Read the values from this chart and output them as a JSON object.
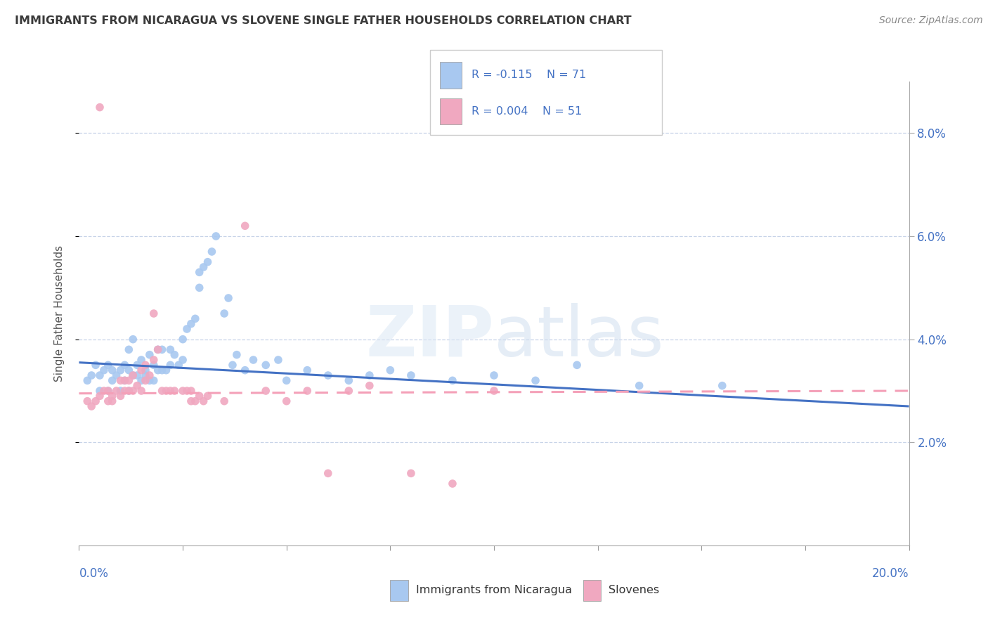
{
  "title": "IMMIGRANTS FROM NICARAGUA VS SLOVENE SINGLE FATHER HOUSEHOLDS CORRELATION CHART",
  "source": "Source: ZipAtlas.com",
  "ylabel": "Single Father Households",
  "legend_blue_label": "Immigrants from Nicaragua",
  "legend_pink_label": "Slovenes",
  "legend_blue_r": "R = -0.115",
  "legend_blue_n": "N = 71",
  "legend_pink_r": "R = 0.004",
  "legend_pink_n": "N = 51",
  "blue_color": "#a8c8f0",
  "pink_color": "#f0a8c0",
  "blue_line_color": "#4472c4",
  "pink_line_color": "#f4a0b8",
  "title_color": "#3a3a3a",
  "axis_label_color": "#4472c4",
  "background_color": "#ffffff",
  "grid_color": "#c8d4e8",
  "blue_scatter": [
    [
      0.002,
      0.032
    ],
    [
      0.003,
      0.033
    ],
    [
      0.004,
      0.035
    ],
    [
      0.005,
      0.03
    ],
    [
      0.005,
      0.033
    ],
    [
      0.006,
      0.034
    ],
    [
      0.007,
      0.03
    ],
    [
      0.007,
      0.035
    ],
    [
      0.008,
      0.034
    ],
    [
      0.008,
      0.032
    ],
    [
      0.009,
      0.033
    ],
    [
      0.01,
      0.03
    ],
    [
      0.01,
      0.034
    ],
    [
      0.011,
      0.032
    ],
    [
      0.011,
      0.035
    ],
    [
      0.012,
      0.03
    ],
    [
      0.012,
      0.034
    ],
    [
      0.012,
      0.038
    ],
    [
      0.013,
      0.033
    ],
    [
      0.013,
      0.04
    ],
    [
      0.014,
      0.033
    ],
    [
      0.014,
      0.035
    ],
    [
      0.015,
      0.032
    ],
    [
      0.015,
      0.036
    ],
    [
      0.016,
      0.033
    ],
    [
      0.016,
      0.034
    ],
    [
      0.017,
      0.032
    ],
    [
      0.017,
      0.037
    ],
    [
      0.018,
      0.032
    ],
    [
      0.018,
      0.035
    ],
    [
      0.019,
      0.034
    ],
    [
      0.019,
      0.038
    ],
    [
      0.02,
      0.034
    ],
    [
      0.02,
      0.038
    ],
    [
      0.021,
      0.034
    ],
    [
      0.022,
      0.035
    ],
    [
      0.022,
      0.038
    ],
    [
      0.023,
      0.037
    ],
    [
      0.024,
      0.035
    ],
    [
      0.025,
      0.036
    ],
    [
      0.025,
      0.04
    ],
    [
      0.026,
      0.042
    ],
    [
      0.027,
      0.043
    ],
    [
      0.028,
      0.044
    ],
    [
      0.029,
      0.05
    ],
    [
      0.029,
      0.053
    ],
    [
      0.03,
      0.054
    ],
    [
      0.031,
      0.055
    ],
    [
      0.032,
      0.057
    ],
    [
      0.033,
      0.06
    ],
    [
      0.035,
      0.045
    ],
    [
      0.036,
      0.048
    ],
    [
      0.037,
      0.035
    ],
    [
      0.038,
      0.037
    ],
    [
      0.04,
      0.034
    ],
    [
      0.042,
      0.036
    ],
    [
      0.045,
      0.035
    ],
    [
      0.048,
      0.036
    ],
    [
      0.05,
      0.032
    ],
    [
      0.055,
      0.034
    ],
    [
      0.06,
      0.033
    ],
    [
      0.065,
      0.032
    ],
    [
      0.07,
      0.033
    ],
    [
      0.075,
      0.034
    ],
    [
      0.08,
      0.033
    ],
    [
      0.09,
      0.032
    ],
    [
      0.1,
      0.033
    ],
    [
      0.11,
      0.032
    ],
    [
      0.12,
      0.035
    ],
    [
      0.135,
      0.031
    ],
    [
      0.155,
      0.031
    ]
  ],
  "pink_scatter": [
    [
      0.002,
      0.028
    ],
    [
      0.003,
      0.027
    ],
    [
      0.004,
      0.028
    ],
    [
      0.005,
      0.029
    ],
    [
      0.005,
      0.085
    ],
    [
      0.006,
      0.03
    ],
    [
      0.007,
      0.028
    ],
    [
      0.007,
      0.03
    ],
    [
      0.008,
      0.029
    ],
    [
      0.008,
      0.028
    ],
    [
      0.009,
      0.03
    ],
    [
      0.01,
      0.029
    ],
    [
      0.01,
      0.032
    ],
    [
      0.011,
      0.03
    ],
    [
      0.011,
      0.032
    ],
    [
      0.012,
      0.03
    ],
    [
      0.012,
      0.032
    ],
    [
      0.013,
      0.03
    ],
    [
      0.013,
      0.033
    ],
    [
      0.014,
      0.031
    ],
    [
      0.015,
      0.03
    ],
    [
      0.015,
      0.034
    ],
    [
      0.016,
      0.032
    ],
    [
      0.016,
      0.035
    ],
    [
      0.017,
      0.033
    ],
    [
      0.018,
      0.036
    ],
    [
      0.018,
      0.045
    ],
    [
      0.019,
      0.038
    ],
    [
      0.02,
      0.03
    ],
    [
      0.021,
      0.03
    ],
    [
      0.022,
      0.03
    ],
    [
      0.023,
      0.03
    ],
    [
      0.025,
      0.03
    ],
    [
      0.026,
      0.03
    ],
    [
      0.027,
      0.028
    ],
    [
      0.027,
      0.03
    ],
    [
      0.028,
      0.028
    ],
    [
      0.029,
      0.029
    ],
    [
      0.03,
      0.028
    ],
    [
      0.031,
      0.029
    ],
    [
      0.035,
      0.028
    ],
    [
      0.04,
      0.062
    ],
    [
      0.045,
      0.03
    ],
    [
      0.05,
      0.028
    ],
    [
      0.055,
      0.03
    ],
    [
      0.06,
      0.014
    ],
    [
      0.065,
      0.03
    ],
    [
      0.07,
      0.031
    ],
    [
      0.08,
      0.014
    ],
    [
      0.09,
      0.012
    ],
    [
      0.1,
      0.03
    ]
  ],
  "blue_trendline": [
    [
      0.0,
      0.0355
    ],
    [
      0.2,
      0.027
    ]
  ],
  "pink_trendline": [
    [
      0.0,
      0.0295
    ],
    [
      0.2,
      0.03
    ]
  ],
  "xlim": [
    0.0,
    0.2
  ],
  "ylim": [
    0.0,
    0.09
  ],
  "yticks": [
    0.02,
    0.04,
    0.06,
    0.08
  ],
  "ytick_labels": [
    "2.0%",
    "4.0%",
    "6.0%",
    "8.0%"
  ],
  "xticks": [
    0.0,
    0.025,
    0.05,
    0.075,
    0.1,
    0.125,
    0.15,
    0.175,
    0.2
  ],
  "figsize": [
    14.06,
    8.92
  ],
  "dpi": 100
}
